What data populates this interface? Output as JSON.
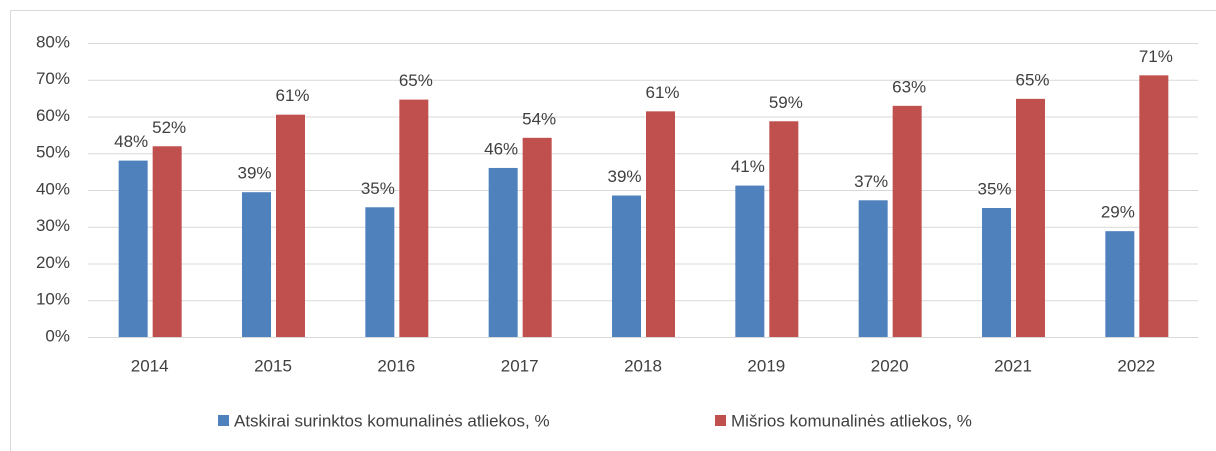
{
  "chart_data": {
    "type": "bar",
    "categories": [
      "2014",
      "2015",
      "2016",
      "2017",
      "2018",
      "2019",
      "2020",
      "2021",
      "2022"
    ],
    "series": [
      {
        "name": "Atskirai surinktos komunalinės atliekos, %",
        "color": "#4f81bd",
        "values": [
          48,
          39.4,
          35.3,
          46,
          38.5,
          41.2,
          37.2,
          35.1,
          28.8
        ],
        "value_labels": [
          "48%",
          "39%",
          "35%",
          "46%",
          "39%",
          "41%",
          "37%",
          "35%",
          "29%"
        ]
      },
      {
        "name": "Mišrios komunalinės atliekos, %",
        "color": "#c0504d",
        "values": [
          51.9,
          60.5,
          64.6,
          54.2,
          61.4,
          58.7,
          62.9,
          64.8,
          71.2
        ],
        "value_labels": [
          "52%",
          "61%",
          "65%",
          "54%",
          "61%",
          "59%",
          "63%",
          "65%",
          "71%"
        ]
      }
    ],
    "ylim": [
      0,
      80
    ],
    "yticks": [
      {
        "value": 0,
        "label": "0%"
      },
      {
        "value": 10,
        "label": "10%"
      },
      {
        "value": 20,
        "label": "20%"
      },
      {
        "value": 30,
        "label": "30%"
      },
      {
        "value": 40,
        "label": "40%"
      },
      {
        "value": 50,
        "label": "50%"
      },
      {
        "value": 60,
        "label": "60%"
      },
      {
        "value": 70,
        "label": "70%"
      },
      {
        "value": 80,
        "label": "80%"
      }
    ],
    "grid": true,
    "legend": "bottom"
  }
}
